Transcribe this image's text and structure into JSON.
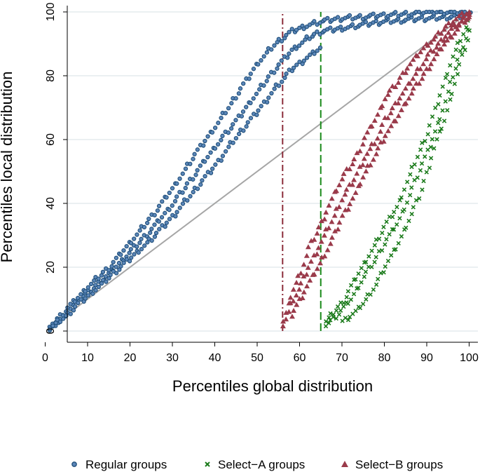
{
  "chart_data": {
    "type": "scatter",
    "title": "",
    "xlabel": "Percentiles global distribution",
    "ylabel": "Percentiles local distribution",
    "xlim": [
      0,
      100
    ],
    "ylim": [
      0,
      100
    ],
    "x_ticks": [
      0,
      10,
      20,
      30,
      40,
      50,
      60,
      70,
      80,
      90,
      100
    ],
    "y_ticks": [
      0,
      20,
      40,
      60,
      80,
      100
    ],
    "grid": "horizontal",
    "legend_position": "bottom",
    "reference_lines": [
      {
        "type": "diagonal",
        "from": [
          1,
          1
        ],
        "to": [
          100,
          100
        ],
        "color": "#a6a6a6",
        "style": "solid"
      },
      {
        "type": "vertical",
        "x": 56,
        "color": "#8b2c3a",
        "style": "dash-dot"
      },
      {
        "type": "vertical",
        "x": 65,
        "color": "#1a8a1a",
        "style": "dashed"
      }
    ],
    "series": [
      {
        "name": "Regular groups",
        "marker": "circle",
        "color": "#1f4e79",
        "bands": [
          {
            "x": [
              1,
              3,
              5,
              8,
              10,
              15,
              20,
              25,
              30,
              35,
              40,
              45,
              50,
              54,
              58,
              62,
              65,
              70,
              80,
              90,
              100
            ],
            "y": [
              1,
              3,
              6,
              10,
              12,
              18,
              25,
              32,
              40,
              49,
              58,
              66,
              75,
              82,
              88,
              92,
              94,
              95,
              97,
              98,
              99
            ]
          },
          {
            "x": [
              1,
              3,
              5,
              8,
              10,
              15,
              20,
              25,
              30,
              35,
              40,
              45,
              50,
              54,
              58,
              62,
              65,
              70,
              80,
              90,
              100
            ],
            "y": [
              1,
              4,
              7,
              11,
              14,
              20,
              28,
              36,
              45,
              55,
              64,
              74,
              84,
              90,
              94,
              96,
              97,
              98,
              99,
              100,
              100
            ]
          },
          {
            "x": [
              1,
              3,
              5,
              8,
              10,
              15,
              20,
              25,
              30,
              35,
              40,
              45,
              50,
              54,
              58,
              62,
              65
            ],
            "y": [
              1,
              3,
              5,
              9,
              11,
              17,
              23,
              29,
              36,
              44,
              52,
              61,
              69,
              76,
              82,
              86,
              89
            ]
          }
        ]
      },
      {
        "name": "Select−A groups",
        "marker": "x",
        "color": "#1a7a1a",
        "bands": [
          {
            "x": [
              66,
              68,
              70,
              72,
              75,
              78,
              80,
              83,
              85,
              88,
              90,
              92,
              94,
              96,
              98,
              100
            ],
            "y": [
              2,
              4,
              7,
              10,
              17,
              23,
              28,
              34,
              40,
              50,
              56,
              63,
              71,
              80,
              88,
              96
            ]
          },
          {
            "x": [
              66,
              68,
              70,
              72,
              75,
              78,
              80,
              83,
              85,
              88,
              90,
              92,
              94,
              96,
              98,
              100
            ],
            "y": [
              3,
              6,
              9,
              14,
              21,
              28,
              33,
              39,
              46,
              56,
              62,
              70,
              78,
              86,
              92,
              98
            ]
          },
          {
            "x": [
              70,
              73,
              75,
              78,
              80,
              83,
              85,
              88,
              90,
              92,
              94,
              96,
              98,
              100
            ],
            "y": [
              3,
              6,
              9,
              15,
              20,
              27,
              33,
              42,
              50,
              59,
              66,
              76,
              85,
              94
            ]
          }
        ]
      },
      {
        "name": "Select−B groups",
        "marker": "triangle",
        "color": "#9a3a4a",
        "bands": [
          {
            "x": [
              56,
              57,
              58,
              60,
              62,
              65,
              68,
              70,
              73,
              75,
              78,
              80,
              83,
              85,
              88,
              90,
              92,
              94,
              96,
              98,
              100
            ],
            "y": [
              2,
              5,
              9,
              14,
              20,
              28,
              36,
              42,
              48,
              54,
              60,
              66,
              72,
              76,
              82,
              86,
              89,
              92,
              95,
              97,
              99
            ]
          },
          {
            "x": [
              56,
              57,
              58,
              60,
              62,
              65,
              68,
              70,
              73,
              75,
              78,
              80,
              83,
              85,
              88,
              90,
              92,
              94,
              96,
              98,
              100
            ],
            "y": [
              3,
              7,
              12,
              18,
              26,
              34,
              43,
              48,
              54,
              60,
              67,
              73,
              78,
              82,
              87,
              90,
              92,
              95,
              97,
              99,
              100
            ]
          },
          {
            "x": [
              58,
              60,
              62,
              65,
              68,
              70,
              73,
              75,
              78,
              80,
              83,
              85,
              88,
              90,
              92,
              94,
              96,
              98,
              100
            ],
            "y": [
              5,
              10,
              15,
              22,
              30,
              36,
              43,
              49,
              56,
              61,
              67,
              72,
              78,
              82,
              86,
              90,
              93,
              96,
              99
            ]
          }
        ]
      }
    ]
  }
}
